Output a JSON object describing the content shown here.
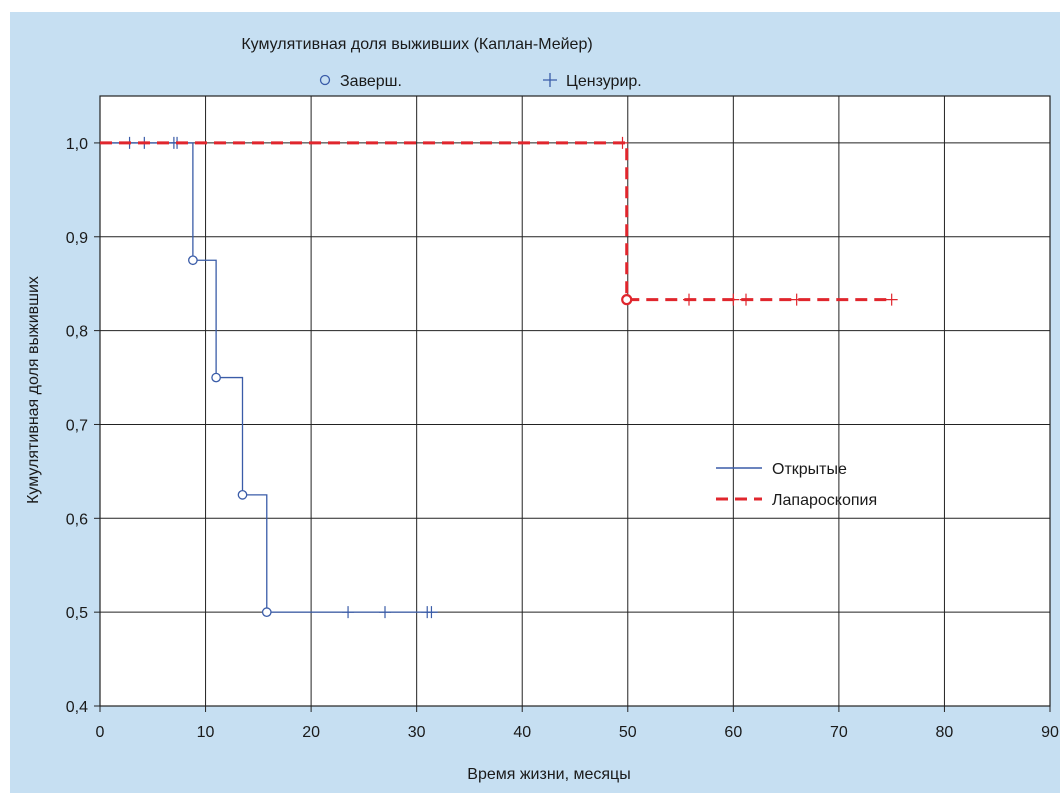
{
  "chart_data": {
    "type": "line",
    "chart_subtype": "kaplan-meier",
    "title": "Кумулятивная доля выживших (Каплан-Мейер)",
    "xlabel": "Время жизни, месяцы",
    "ylabel": "Кумулятивная доля выживших",
    "xlim": [
      0,
      90
    ],
    "ylim": [
      0.4,
      1.05
    ],
    "x_ticks": [
      0,
      10,
      20,
      30,
      40,
      50,
      60,
      70,
      80,
      90
    ],
    "x_tick_labels": [
      "0",
      "10",
      "20",
      "30",
      "40",
      "50",
      "60",
      "70",
      "80",
      "90"
    ],
    "y_ticks": [
      0.4,
      0.5,
      0.6,
      0.7,
      0.8,
      0.9,
      1.0
    ],
    "y_tick_labels": [
      "0,4",
      "0,5",
      "0,6",
      "0,7",
      "0,8",
      "0,9",
      "1,0"
    ],
    "grid": true,
    "marker_legend": [
      {
        "symbol": "circle",
        "label": "Заверш."
      },
      {
        "symbol": "plus",
        "label": "Цензурир."
      }
    ],
    "legend_position": "right-center",
    "series": [
      {
        "name": "Открытые",
        "color": "#3a5ca8",
        "line_style": "solid",
        "steps": [
          [
            0,
            1.0
          ],
          [
            8.8,
            0.875
          ],
          [
            11.0,
            0.75
          ],
          [
            13.5,
            0.625
          ],
          [
            15.8,
            0.5
          ],
          [
            32.0,
            0.5
          ]
        ],
        "events": [
          [
            8.8,
            0.875
          ],
          [
            11.0,
            0.75
          ],
          [
            13.5,
            0.625
          ],
          [
            15.8,
            0.5
          ]
        ],
        "censored": [
          [
            2.8,
            1.0
          ],
          [
            4.2,
            1.0
          ],
          [
            7.0,
            1.0
          ],
          [
            7.3,
            1.0
          ],
          [
            23.5,
            0.5
          ],
          [
            27.0,
            0.5
          ],
          [
            31.0,
            0.5
          ],
          [
            31.4,
            0.5
          ]
        ]
      },
      {
        "name": "Лапароскопия",
        "color": "#e0262d",
        "line_style": "dashed",
        "steps": [
          [
            0,
            1.0
          ],
          [
            49.9,
            0.833
          ],
          [
            75.0,
            0.833
          ]
        ],
        "events": [
          [
            49.9,
            0.833
          ]
        ],
        "censored": [
          [
            49.5,
            1.0
          ],
          [
            55.8,
            0.833
          ],
          [
            60.0,
            0.833
          ],
          [
            61.2,
            0.833
          ],
          [
            66.0,
            0.833
          ],
          [
            75.0,
            0.833
          ]
        ]
      }
    ]
  }
}
